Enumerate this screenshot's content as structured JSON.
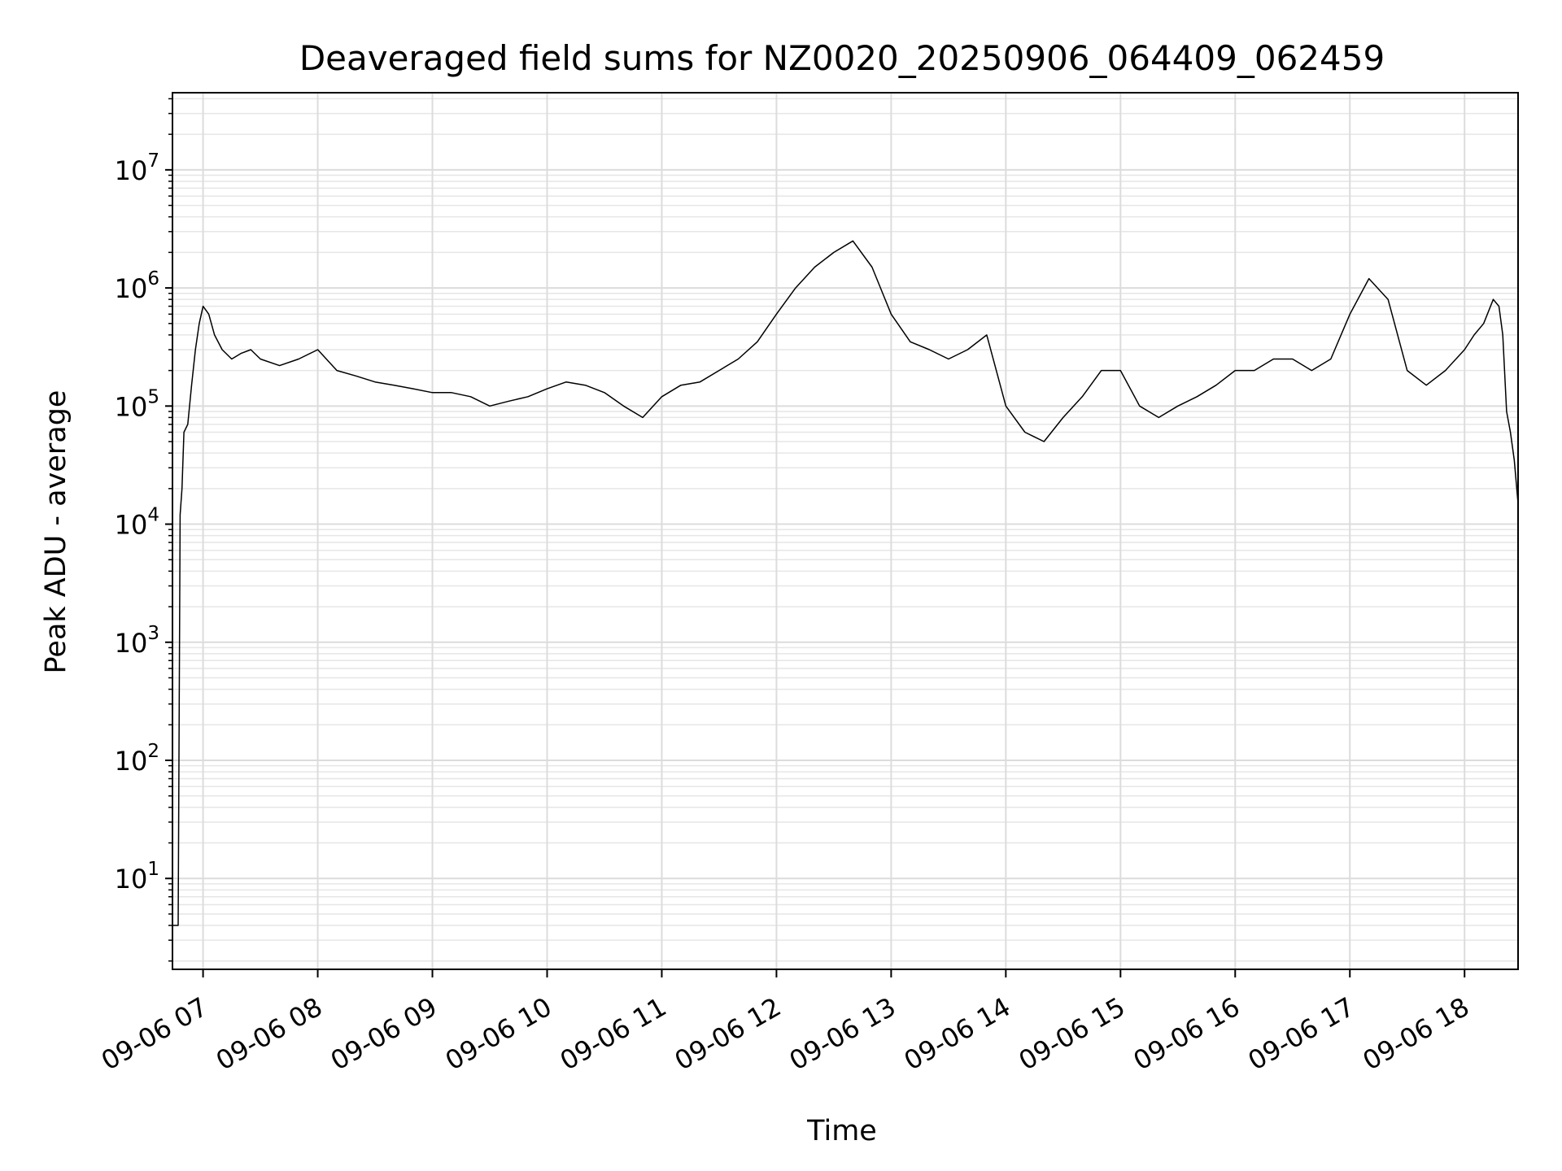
{
  "chart_data": {
    "type": "line",
    "title": "Deaveraged field sums for NZ0020_20250906_064409_062459",
    "xlabel": "Time",
    "ylabel": "Peak ADU - average",
    "yscale": "log",
    "ylim": [
      1.7,
      45000000
    ],
    "xlim": [
      "2025-09-06 06:44",
      "2025-09-06 18:28"
    ],
    "x_ticks": [
      "09-06 07",
      "09-06 08",
      "09-06 09",
      "09-06 10",
      "09-06 11",
      "09-06 12",
      "09-06 13",
      "09-06 14",
      "09-06 15",
      "09-06 16",
      "09-06 17",
      "09-06 18"
    ],
    "y_ticks": [
      {
        "base": "10",
        "exp": "1"
      },
      {
        "base": "10",
        "exp": "2"
      },
      {
        "base": "10",
        "exp": "3"
      },
      {
        "base": "10",
        "exp": "4"
      },
      {
        "base": "10",
        "exp": "5"
      },
      {
        "base": "10",
        "exp": "6"
      },
      {
        "base": "10",
        "exp": "7"
      }
    ],
    "grid": true,
    "line_color": "#000000",
    "series": [
      {
        "x": [
          "06:44",
          "06:45",
          "06:46",
          "06:47",
          "06:48",
          "06:49",
          "06:50",
          "06:52",
          "06:54",
          "06:56",
          "06:58",
          "07:00",
          "07:03",
          "07:06",
          "07:10",
          "07:15",
          "07:20",
          "07:25",
          "07:30",
          "07:40",
          "07:50",
          "08:00",
          "08:10",
          "08:20",
          "08:30",
          "08:40",
          "08:50",
          "09:00",
          "09:10",
          "09:20",
          "09:30",
          "09:40",
          "09:50",
          "10:00",
          "10:10",
          "10:20",
          "10:30",
          "10:40",
          "10:50",
          "11:00",
          "11:10",
          "11:20",
          "11:30",
          "11:40",
          "11:50",
          "12:00",
          "12:10",
          "12:20",
          "12:30",
          "12:40",
          "12:50",
          "13:00",
          "13:10",
          "13:20",
          "13:30",
          "13:40",
          "13:50",
          "14:00",
          "14:10",
          "14:20",
          "14:30",
          "14:40",
          "14:50",
          "15:00",
          "15:10",
          "15:20",
          "15:30",
          "15:40",
          "15:50",
          "16:00",
          "16:10",
          "16:20",
          "16:30",
          "16:40",
          "16:50",
          "17:00",
          "17:10",
          "17:20",
          "17:30",
          "17:40",
          "17:50",
          "18:00",
          "18:05",
          "18:10",
          "18:15",
          "18:18",
          "18:20",
          "18:22",
          "18:24",
          "18:26",
          "18:28"
        ],
        "y": [
          4,
          4,
          4,
          4,
          12000,
          20000,
          60000,
          70000,
          150000,
          300000,
          500000,
          700000,
          600000,
          400000,
          300000,
          250000,
          280000,
          300000,
          250000,
          220000,
          250000,
          300000,
          200000,
          180000,
          160000,
          150000,
          140000,
          130000,
          130000,
          120000,
          100000,
          110000,
          120000,
          140000,
          160000,
          150000,
          130000,
          100000,
          80000,
          120000,
          150000,
          160000,
          200000,
          250000,
          350000,
          600000,
          1000000,
          1500000,
          2000000,
          2500000,
          1500000,
          600000,
          350000,
          300000,
          250000,
          300000,
          400000,
          100000,
          60000,
          50000,
          80000,
          120000,
          200000,
          200000,
          100000,
          80000,
          100000,
          120000,
          150000,
          200000,
          200000,
          250000,
          250000,
          200000,
          250000,
          600000,
          1200000,
          800000,
          200000,
          150000,
          200000,
          300000,
          400000,
          500000,
          800000,
          700000,
          400000,
          90000,
          60000,
          35000,
          15000
        ]
      }
    ]
  }
}
